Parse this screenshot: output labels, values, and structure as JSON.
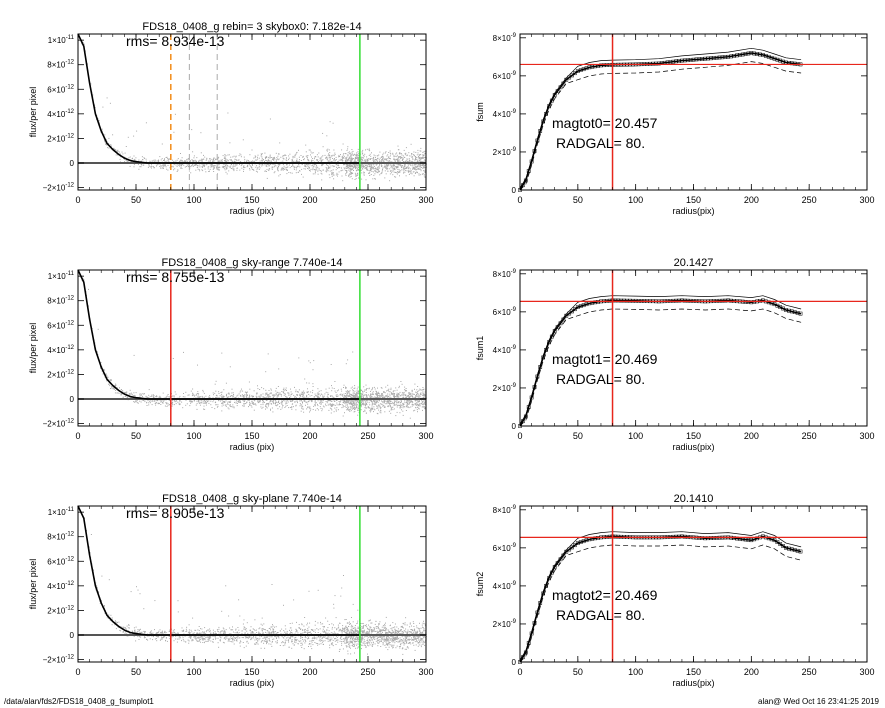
{
  "footer": {
    "left": "/data/alan/fds2/FDS18_0408_g_fsumplot1",
    "right": "alan@  Wed Oct 16 23:41:25 2019"
  },
  "colors": {
    "scatter": "#aaaaaa",
    "profile": "#000000",
    "red": "#e8261c",
    "green": "#33dd33",
    "orange": "#f28c1a",
    "dashed_gray": "#aaaaaa"
  },
  "chart_data": [
    {
      "type": "scatter",
      "title": "FDS18_0408_g rebin= 3    skybox0:  7.182e-14",
      "annotation": "rms= 8.934e-13",
      "xlabel": "radius (pix)",
      "ylabel": "flux/per pixel",
      "xlim": [
        0,
        300
      ],
      "ylim": [
        -2.2e-12,
        1.05e-11
      ],
      "xticks": [
        0,
        50,
        100,
        150,
        200,
        250,
        300
      ],
      "yticks": [
        {
          "v": 1e-11,
          "t": "1×10",
          "e": "-11"
        },
        {
          "v": 8e-12,
          "t": "8×10",
          "e": "-12"
        },
        {
          "v": 6e-12,
          "t": "6×10",
          "e": "-12"
        },
        {
          "v": 4e-12,
          "t": "4×10",
          "e": "-12"
        },
        {
          "v": 2e-12,
          "t": "2×10",
          "e": "-12"
        },
        {
          "v": 0,
          "t": "0",
          "e": ""
        },
        {
          "v": -2e-12,
          "t": "−2×10",
          "e": "-12"
        }
      ],
      "zero_line": true,
      "vlines": [
        {
          "x": 80,
          "color": "orange",
          "dash": true
        },
        {
          "x": 96,
          "color": "dashed_gray",
          "dash": true
        },
        {
          "x": 120,
          "color": "dashed_gray",
          "dash": true
        },
        {
          "x": 243,
          "color": "green",
          "dash": false
        }
      ],
      "profile": {
        "x": [
          0,
          5,
          10,
          15,
          20,
          25,
          30,
          35,
          40,
          45,
          50,
          60,
          80,
          100,
          150,
          200,
          243
        ],
        "y": [
          1.05e-11,
          9.5e-12,
          6.5e-12,
          4e-12,
          2.6e-12,
          1.6e-12,
          1.1e-12,
          7e-13,
          4e-13,
          2e-13,
          1e-13,
          0,
          0,
          0,
          0,
          0,
          0
        ]
      }
    },
    {
      "type": "line",
      "title": "",
      "annotation_lines": [
        "magtot0=  20.457",
        "RADGAL=     80."
      ],
      "xlabel": "radius(pix)",
      "ylabel": "fsum",
      "xlim": [
        0,
        300
      ],
      "ylim": [
        0,
        8.2e-09
      ],
      "xticks": [
        0,
        50,
        100,
        150,
        200,
        250,
        300
      ],
      "yticks": [
        {
          "v": 8e-09,
          "t": "8×10",
          "e": "-9"
        },
        {
          "v": 6e-09,
          "t": "6×10",
          "e": "-9"
        },
        {
          "v": 4e-09,
          "t": "4×10",
          "e": "-9"
        },
        {
          "v": 2e-09,
          "t": "2×10",
          "e": "-9"
        },
        {
          "v": 0,
          "t": "0",
          "e": ""
        }
      ],
      "hline": 6.6e-09,
      "vline": 80,
      "series": [
        {
          "x": [
            0,
            5,
            10,
            15,
            20,
            25,
            30,
            40,
            50,
            60,
            70,
            80,
            100,
            120,
            140,
            160,
            180,
            200,
            210,
            220,
            230,
            243
          ],
          "y": [
            0,
            5e-10,
            1.5e-09,
            2.6e-09,
            3.6e-09,
            4.4e-09,
            5e-09,
            5.8e-09,
            6.25e-09,
            6.45e-09,
            6.55e-09,
            6.58e-09,
            6.6e-09,
            6.65e-09,
            6.8e-09,
            6.9e-09,
            7e-09,
            7.2e-09,
            7.1e-09,
            6.9e-09,
            6.7e-09,
            6.6e-09
          ]
        }
      ]
    },
    {
      "type": "scatter",
      "title": "FDS18_0408_g sky-range  7.740e-14",
      "annotation": "rms= 8.755e-13",
      "xlabel": "radius (pix)",
      "ylabel": "flux/per pixel",
      "xlim": [
        0,
        300
      ],
      "ylim": [
        -2.2e-12,
        1.05e-11
      ],
      "xticks": [
        0,
        50,
        100,
        150,
        200,
        250,
        300
      ],
      "yticks": [
        {
          "v": 1e-11,
          "t": "1×10",
          "e": "-11"
        },
        {
          "v": 8e-12,
          "t": "8×10",
          "e": "-12"
        },
        {
          "v": 6e-12,
          "t": "6×10",
          "e": "-12"
        },
        {
          "v": 4e-12,
          "t": "4×10",
          "e": "-12"
        },
        {
          "v": 2e-12,
          "t": "2×10",
          "e": "-12"
        },
        {
          "v": 0,
          "t": "0",
          "e": ""
        },
        {
          "v": -2e-12,
          "t": "−2×10",
          "e": "-12"
        }
      ],
      "zero_line": true,
      "vlines": [
        {
          "x": 80,
          "color": "red",
          "dash": false
        },
        {
          "x": 243,
          "color": "green",
          "dash": false
        }
      ],
      "profile": {
        "x": [
          0,
          5,
          10,
          15,
          20,
          25,
          30,
          35,
          40,
          45,
          50,
          60,
          80,
          100,
          150,
          200,
          243
        ],
        "y": [
          1.05e-11,
          9.5e-12,
          6.5e-12,
          4e-12,
          2.6e-12,
          1.6e-12,
          1.1e-12,
          7e-13,
          4e-13,
          2e-13,
          1e-13,
          0,
          0,
          0,
          0,
          0,
          0
        ]
      }
    },
    {
      "type": "line",
      "title": "20.1427",
      "annotation_lines": [
        "magtot1=  20.469",
        "RADGAL=     80."
      ],
      "xlabel": "radius(pix)",
      "ylabel": "fsum1",
      "xlim": [
        0,
        300
      ],
      "ylim": [
        0,
        8.2e-09
      ],
      "xticks": [
        0,
        50,
        100,
        150,
        200,
        250,
        300
      ],
      "yticks": [
        {
          "v": 8e-09,
          "t": "8×10",
          "e": "-9"
        },
        {
          "v": 6e-09,
          "t": "6×10",
          "e": "-9"
        },
        {
          "v": 4e-09,
          "t": "4×10",
          "e": "-9"
        },
        {
          "v": 2e-09,
          "t": "2×10",
          "e": "-9"
        },
        {
          "v": 0,
          "t": "0",
          "e": ""
        }
      ],
      "hline": 6.55e-09,
      "vline": 80,
      "series": [
        {
          "x": [
            0,
            5,
            10,
            15,
            20,
            25,
            30,
            40,
            50,
            60,
            70,
            80,
            100,
            120,
            140,
            160,
            180,
            200,
            210,
            220,
            230,
            243
          ],
          "y": [
            0,
            5e-10,
            1.5e-09,
            2.6e-09,
            3.6e-09,
            4.4e-09,
            5e-09,
            5.8e-09,
            6.25e-09,
            6.45e-09,
            6.55e-09,
            6.6e-09,
            6.58e-09,
            6.55e-09,
            6.6e-09,
            6.55e-09,
            6.6e-09,
            6.5e-09,
            6.6e-09,
            6.4e-09,
            6.1e-09,
            5.9e-09
          ]
        }
      ]
    },
    {
      "type": "scatter",
      "title": "FDS18_0408_g sky-plane  7.740e-14",
      "annotation": "rms= 8.905e-13",
      "xlabel": "radius (pix)",
      "ylabel": "flux/per pixel",
      "xlim": [
        0,
        300
      ],
      "ylim": [
        -2.2e-12,
        1.05e-11
      ],
      "xticks": [
        0,
        50,
        100,
        150,
        200,
        250,
        300
      ],
      "yticks": [
        {
          "v": 1e-11,
          "t": "1×10",
          "e": "-11"
        },
        {
          "v": 8e-12,
          "t": "8×10",
          "e": "-12"
        },
        {
          "v": 6e-12,
          "t": "6×10",
          "e": "-12"
        },
        {
          "v": 4e-12,
          "t": "4×10",
          "e": "-12"
        },
        {
          "v": 2e-12,
          "t": "2×10",
          "e": "-12"
        },
        {
          "v": 0,
          "t": "0",
          "e": ""
        },
        {
          "v": -2e-12,
          "t": "−2×10",
          "e": "-12"
        }
      ],
      "zero_line": true,
      "vlines": [
        {
          "x": 80,
          "color": "red",
          "dash": false
        },
        {
          "x": 243,
          "color": "green",
          "dash": false
        }
      ],
      "profile": {
        "x": [
          0,
          5,
          10,
          15,
          20,
          25,
          30,
          35,
          40,
          45,
          50,
          60,
          80,
          100,
          150,
          200,
          243
        ],
        "y": [
          1.05e-11,
          9.5e-12,
          6.5e-12,
          4e-12,
          2.6e-12,
          1.6e-12,
          1.1e-12,
          7e-13,
          4e-13,
          2e-13,
          1e-13,
          0,
          0,
          0,
          0,
          0,
          0
        ]
      }
    },
    {
      "type": "line",
      "title": "20.1410",
      "annotation_lines": [
        "magtot2=  20.469",
        "RADGAL=     80."
      ],
      "xlabel": "radius(pix)",
      "ylabel": "fsum2",
      "xlim": [
        0,
        300
      ],
      "ylim": [
        0,
        8.2e-09
      ],
      "xticks": [
        0,
        50,
        100,
        150,
        200,
        250,
        300
      ],
      "yticks": [
        {
          "v": 8e-09,
          "t": "8×10",
          "e": "-9"
        },
        {
          "v": 6e-09,
          "t": "6×10",
          "e": "-9"
        },
        {
          "v": 4e-09,
          "t": "4×10",
          "e": "-9"
        },
        {
          "v": 2e-09,
          "t": "2×10",
          "e": "-9"
        },
        {
          "v": 0,
          "t": "0",
          "e": ""
        }
      ],
      "hline": 6.55e-09,
      "vline": 80,
      "series": [
        {
          "x": [
            0,
            5,
            10,
            15,
            20,
            25,
            30,
            40,
            50,
            60,
            70,
            80,
            100,
            120,
            140,
            160,
            180,
            200,
            210,
            220,
            230,
            243
          ],
          "y": [
            0,
            5e-10,
            1.5e-09,
            2.6e-09,
            3.6e-09,
            4.4e-09,
            5e-09,
            5.8e-09,
            6.25e-09,
            6.45e-09,
            6.55e-09,
            6.6e-09,
            6.55e-09,
            6.55e-09,
            6.6e-09,
            6.5e-09,
            6.55e-09,
            6.4e-09,
            6.6e-09,
            6.4e-09,
            6e-09,
            5.8e-09
          ]
        }
      ]
    }
  ]
}
